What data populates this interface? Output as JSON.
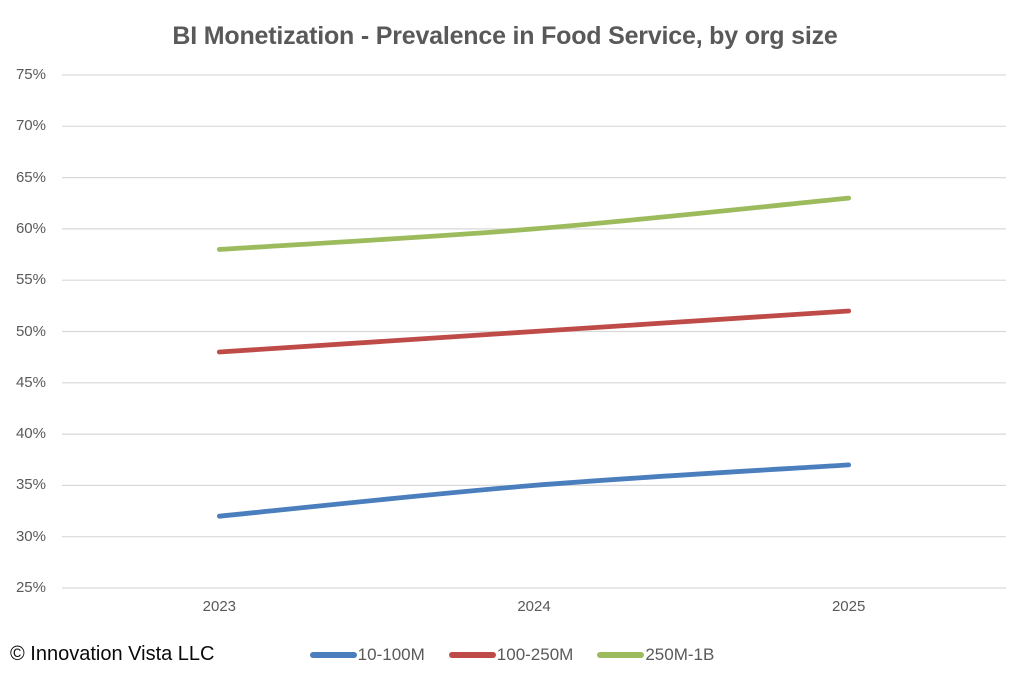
{
  "title": "BI Monetization - Prevalence in Food Service, by org size",
  "footer": {
    "copyright": "© Innovation Vista LLC"
  },
  "chart_data": {
    "type": "line",
    "title": "BI Monetization - Prevalence in Food Service, by org size",
    "categories": [
      "2023",
      "2024",
      "2025"
    ],
    "series": [
      {
        "name": "10-100M",
        "color": "#4A7EBD",
        "values": [
          32,
          35,
          37
        ]
      },
      {
        "name": "100-250M",
        "color": "#BE4B48",
        "values": [
          48,
          50,
          52
        ]
      },
      {
        "name": "250M-1B",
        "color": "#9CBB5C",
        "values": [
          58,
          60,
          63
        ]
      }
    ],
    "xlabel": "",
    "ylabel": "",
    "ylim": [
      25,
      75
    ],
    "ytick_step": 5,
    "ytick_suffix": "%",
    "grid": true,
    "gridline_color": "#D9D9D9",
    "text_color": "#595959",
    "line_style": "smoothed",
    "legend_position": "bottom"
  }
}
